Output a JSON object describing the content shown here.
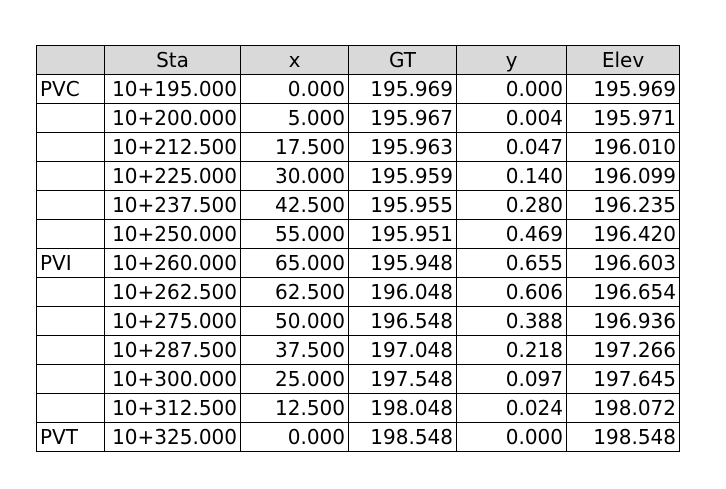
{
  "table": {
    "headers": [
      "",
      "Sta",
      "x",
      "GT",
      "y",
      "Elev"
    ],
    "rows": [
      [
        "PVC",
        "10+195.000",
        "0.000",
        "195.969",
        "0.000",
        "195.969"
      ],
      [
        "",
        "10+200.000",
        "5.000",
        "195.967",
        "0.004",
        "195.971"
      ],
      [
        "",
        "10+212.500",
        "17.500",
        "195.963",
        "0.047",
        "196.010"
      ],
      [
        "",
        "10+225.000",
        "30.000",
        "195.959",
        "0.140",
        "196.099"
      ],
      [
        "",
        "10+237.500",
        "42.500",
        "195.955",
        "0.280",
        "196.235"
      ],
      [
        "",
        "10+250.000",
        "55.000",
        "195.951",
        "0.469",
        "196.420"
      ],
      [
        "PVI",
        "10+260.000",
        "65.000",
        "195.948",
        "0.655",
        "196.603"
      ],
      [
        "",
        "10+262.500",
        "62.500",
        "196.048",
        "0.606",
        "196.654"
      ],
      [
        "",
        "10+275.000",
        "50.000",
        "196.548",
        "0.388",
        "196.936"
      ],
      [
        "",
        "10+287.500",
        "37.500",
        "197.048",
        "0.218",
        "197.266"
      ],
      [
        "",
        "10+300.000",
        "25.000",
        "197.548",
        "0.097",
        "197.645"
      ],
      [
        "",
        "10+312.500",
        "12.500",
        "198.048",
        "0.024",
        "198.072"
      ],
      [
        "PVT",
        "10+325.000",
        "0.000",
        "198.548",
        "0.000",
        "198.548"
      ]
    ]
  },
  "colors": {
    "header_bg": "#d9d9d9",
    "border": "#000000",
    "text": "#000000"
  }
}
